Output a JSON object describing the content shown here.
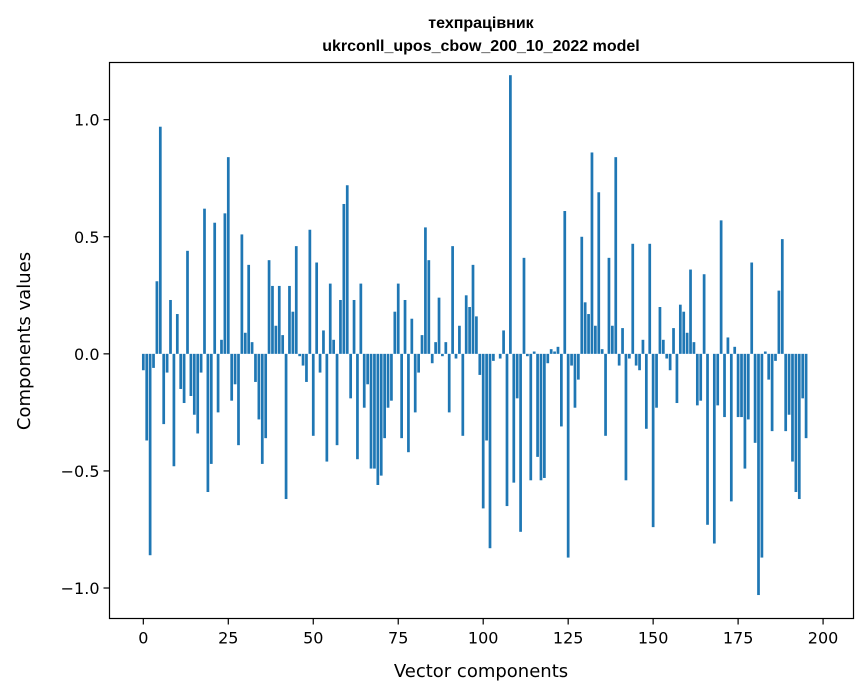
{
  "chart_data": {
    "type": "bar",
    "title_line1": "техпрацівник",
    "title_line2": "ukrconll_upos_cbow_200_10_2022 model",
    "xlabel": "Vector components",
    "ylabel": "Components values",
    "xlim": [
      -9.95,
      208.95
    ],
    "ylim": [
      -1.1302,
      1.2442
    ],
    "xticks": [
      0,
      25,
      50,
      75,
      100,
      125,
      150,
      175,
      200
    ],
    "xtick_labels": [
      "0",
      "25",
      "50",
      "75",
      "100",
      "125",
      "150",
      "175",
      "200"
    ],
    "yticks": [
      -1.0,
      -0.5,
      0.0,
      0.5,
      1.0
    ],
    "ytick_labels": [
      "−1.0",
      "−0.5",
      "0.0",
      "0.5",
      "1.0"
    ],
    "bar_color": "#1f77b4",
    "values": [
      -0.07,
      -0.37,
      -0.86,
      -0.06,
      0.31,
      0.97,
      -0.3,
      -0.08,
      0.23,
      -0.48,
      0.17,
      -0.15,
      -0.21,
      0.44,
      -0.18,
      -0.26,
      -0.34,
      -0.08,
      0.62,
      -0.59,
      -0.47,
      0.56,
      -0.25,
      0.06,
      0.6,
      0.84,
      -0.2,
      -0.13,
      -0.39,
      0.51,
      0.09,
      0.38,
      0.05,
      -0.12,
      -0.28,
      -0.47,
      -0.36,
      0.4,
      0.29,
      0.12,
      0.29,
      0.08,
      -0.62,
      0.29,
      0.18,
      0.46,
      -0.01,
      -0.05,
      -0.12,
      0.53,
      -0.35,
      0.39,
      -0.08,
      0.1,
      -0.46,
      0.3,
      0.06,
      -0.39,
      0.23,
      0.64,
      0.72,
      -0.19,
      0.23,
      -0.45,
      0.3,
      -0.23,
      -0.13,
      -0.49,
      -0.49,
      -0.56,
      -0.52,
      -0.36,
      -0.23,
      -0.2,
      0.18,
      0.3,
      -0.36,
      0.23,
      -0.42,
      0.15,
      -0.25,
      -0.08,
      0.08,
      0.54,
      0.4,
      -0.04,
      0.05,
      0.24,
      -0.01,
      0.05,
      -0.25,
      0.46,
      -0.02,
      0.12,
      -0.35,
      0.25,
      0.2,
      0.38,
      0.16,
      -0.09,
      -0.66,
      -0.37,
      -0.83,
      -0.03,
      0.0,
      -0.02,
      0.1,
      -0.65,
      1.19,
      -0.55,
      -0.19,
      -0.76,
      0.41,
      -0.01,
      -0.54,
      0.01,
      -0.44,
      -0.54,
      -0.53,
      -0.04,
      0.02,
      0.01,
      0.03,
      -0.31,
      0.61,
      -0.87,
      -0.05,
      -0.23,
      -0.11,
      0.5,
      0.22,
      0.17,
      0.86,
      0.12,
      0.69,
      0.02,
      -0.35,
      0.41,
      0.12,
      0.84,
      -0.05,
      0.11,
      -0.54,
      -0.02,
      0.47,
      -0.05,
      -0.07,
      0.06,
      -0.32,
      0.47,
      -0.74,
      -0.23,
      0.2,
      0.06,
      -0.02,
      -0.07,
      0.11,
      -0.21,
      0.21,
      0.18,
      0.09,
      0.36,
      0.05,
      -0.22,
      -0.2,
      0.34,
      -0.73,
      0.0,
      -0.81,
      -0.22,
      0.57,
      -0.27,
      0.07,
      -0.63,
      0.03,
      -0.27,
      -0.27,
      -0.49,
      -0.28,
      0.39,
      -0.38,
      -1.03,
      -0.87,
      0.01,
      -0.11,
      -0.33,
      -0.03,
      0.27,
      0.49,
      -0.33,
      -0.26,
      -0.46,
      -0.59,
      -0.62,
      -0.19,
      -0.36
    ]
  }
}
